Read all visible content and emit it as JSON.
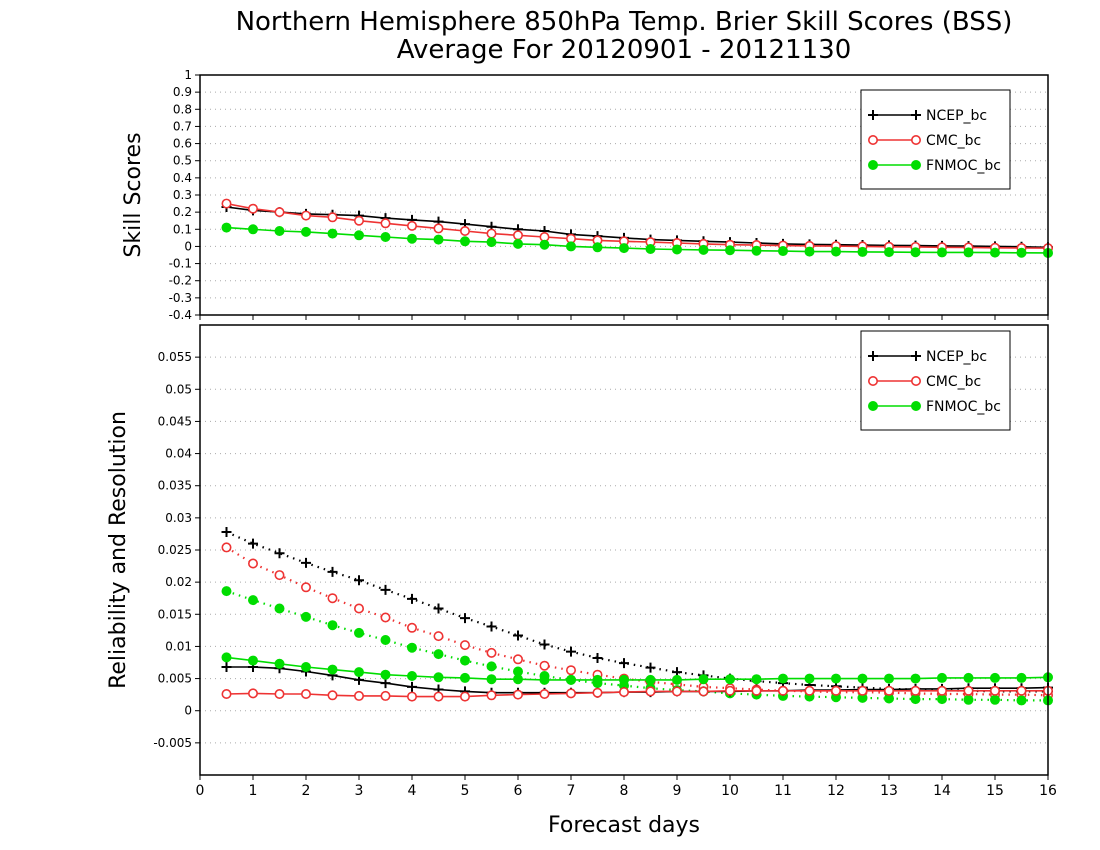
{
  "title_line1": "Northern Hemisphere 850hPa Temp. Brier Skill Scores (BSS)",
  "title_line2": "Average For 20120901 - 20121130",
  "xlabel": "Forecast days",
  "chart_data": [
    {
      "type": "line",
      "ylabel": "Skill Scores",
      "xlim": [
        0,
        16
      ],
      "ylim": [
        -0.4,
        1
      ],
      "grid": true,
      "legend_position": "top-right",
      "x_ticks": [
        "0",
        "1",
        "2",
        "3",
        "4",
        "5",
        "6",
        "7",
        "8",
        "9",
        "10",
        "11",
        "12",
        "13",
        "14",
        "15",
        "16"
      ],
      "y_ticks": [
        "-0.4",
        "-0.3",
        "-0.2",
        "-0.1",
        "0",
        "0.1",
        "0.2",
        "0.3",
        "0.4",
        "0.5",
        "0.6",
        "0.7",
        "0.8",
        "0.9",
        "1"
      ],
      "x": [
        0.5,
        1,
        1.5,
        2,
        2.5,
        3,
        3.5,
        4,
        4.5,
        5,
        5.5,
        6,
        6.5,
        7,
        7.5,
        8,
        8.5,
        9,
        9.5,
        10,
        10.5,
        11,
        11.5,
        12,
        12.5,
        13,
        13.5,
        14,
        14.5,
        15,
        15.5,
        16
      ],
      "series": [
        {
          "name": "NCEP_bc",
          "color": "#000000",
          "marker": "plus",
          "style": "solid",
          "values": [
            0.23,
            0.21,
            0.2,
            0.19,
            0.185,
            0.18,
            0.165,
            0.155,
            0.145,
            0.13,
            0.115,
            0.1,
            0.09,
            0.07,
            0.06,
            0.05,
            0.04,
            0.035,
            0.03,
            0.025,
            0.02,
            0.015,
            0.012,
            0.01,
            0.008,
            0.006,
            0.005,
            0.003,
            0.002,
            0.0,
            -0.002,
            -0.005
          ]
        },
        {
          "name": "CMC_bc",
          "color": "#ee3333",
          "marker": "open-circle",
          "style": "solid",
          "values": [
            0.25,
            0.22,
            0.2,
            0.18,
            0.17,
            0.15,
            0.135,
            0.12,
            0.105,
            0.09,
            0.075,
            0.065,
            0.055,
            0.045,
            0.035,
            0.03,
            0.025,
            0.02,
            0.015,
            0.01,
            0.008,
            0.005,
            0.003,
            0.002,
            0.0,
            -0.002,
            -0.003,
            -0.005,
            -0.006,
            -0.008,
            -0.009,
            -0.01
          ]
        },
        {
          "name": "FNMOC_bc",
          "color": "#00dd00",
          "marker": "filled-circle",
          "style": "solid",
          "values": [
            0.11,
            0.1,
            0.09,
            0.085,
            0.075,
            0.065,
            0.055,
            0.045,
            0.04,
            0.03,
            0.025,
            0.015,
            0.01,
            0.0,
            -0.005,
            -0.01,
            -0.015,
            -0.018,
            -0.02,
            -0.022,
            -0.025,
            -0.027,
            -0.03,
            -0.03,
            -0.032,
            -0.033,
            -0.034,
            -0.035,
            -0.035,
            -0.036,
            -0.037,
            -0.038
          ]
        }
      ]
    },
    {
      "type": "line",
      "ylabel": "Reliability and Resolution",
      "xlim": [
        0,
        16
      ],
      "ylim": [
        -0.01,
        0.06
      ],
      "grid": true,
      "legend_position": "top-right",
      "x_ticks": [
        "0",
        "1",
        "2",
        "3",
        "4",
        "5",
        "6",
        "7",
        "8",
        "9",
        "10",
        "11",
        "12",
        "13",
        "14",
        "15",
        "16"
      ],
      "y_ticks": [
        "-0.005",
        "0",
        "0.005",
        "0.01",
        "0.015",
        "0.02",
        "0.025",
        "0.03",
        "0.035",
        "0.04",
        "0.045",
        "0.05",
        "0.055"
      ],
      "x": [
        0.5,
        1,
        1.5,
        2,
        2.5,
        3,
        3.5,
        4,
        4.5,
        5,
        5.5,
        6,
        6.5,
        7,
        7.5,
        8,
        8.5,
        9,
        9.5,
        10,
        10.5,
        11,
        11.5,
        12,
        12.5,
        13,
        13.5,
        14,
        14.5,
        15,
        15.5,
        16
      ],
      "legend": [
        {
          "name": "NCEP_bc",
          "color": "#000000",
          "marker": "plus"
        },
        {
          "name": "CMC_bc",
          "color": "#ee3333",
          "marker": "open-circle"
        },
        {
          "name": "FNMOC_bc",
          "color": "#00dd00",
          "marker": "filled-circle"
        }
      ],
      "series": [
        {
          "name": "NCEP_bc",
          "color": "#000000",
          "marker": "plus",
          "style": "dotted",
          "values": [
            0.0278,
            0.026,
            0.0245,
            0.023,
            0.0216,
            0.0203,
            0.0188,
            0.0174,
            0.0159,
            0.0144,
            0.0131,
            0.0117,
            0.0103,
            0.0092,
            0.0082,
            0.0074,
            0.0067,
            0.006,
            0.0055,
            0.005,
            0.0046,
            0.0043,
            0.004,
            0.0038,
            0.0036,
            0.0034,
            0.0033,
            0.0032,
            0.0031,
            0.003,
            0.003,
            0.003
          ]
        },
        {
          "name": "CMC_bc",
          "color": "#ee3333",
          "marker": "open-circle",
          "style": "dotted",
          "values": [
            0.0254,
            0.0229,
            0.0211,
            0.0192,
            0.0175,
            0.0159,
            0.0145,
            0.0129,
            0.0116,
            0.0102,
            0.009,
            0.008,
            0.007,
            0.0063,
            0.0056,
            0.005,
            0.0045,
            0.0041,
            0.0037,
            0.0035,
            0.0033,
            0.0031,
            0.003,
            0.0029,
            0.0029,
            0.0028,
            0.0027,
            0.0026,
            0.0026,
            0.0025,
            0.0025,
            0.0024
          ]
        },
        {
          "name": "FNMOC_bc",
          "color": "#00dd00",
          "marker": "filled-circle",
          "style": "dotted",
          "values": [
            0.0186,
            0.0172,
            0.0159,
            0.0146,
            0.0133,
            0.0121,
            0.011,
            0.0098,
            0.0088,
            0.0078,
            0.0069,
            0.0061,
            0.0054,
            0.0048,
            0.0043,
            0.0039,
            0.0035,
            0.0032,
            0.003,
            0.0027,
            0.0025,
            0.0023,
            0.0022,
            0.0021,
            0.002,
            0.0019,
            0.0018,
            0.0018,
            0.0017,
            0.0017,
            0.0016,
            0.0016
          ]
        },
        {
          "name": "NCEP_bc",
          "color": "#000000",
          "marker": "plus",
          "style": "solid",
          "values": [
            0.0068,
            0.0068,
            0.0066,
            0.0061,
            0.0055,
            0.0048,
            0.0043,
            0.0037,
            0.0033,
            0.003,
            0.0028,
            0.0028,
            0.0028,
            0.0028,
            0.0028,
            0.0029,
            0.0029,
            0.003,
            0.003,
            0.003,
            0.0031,
            0.0031,
            0.0032,
            0.0032,
            0.0033,
            0.0033,
            0.0034,
            0.0034,
            0.0035,
            0.0035,
            0.0035,
            0.0036
          ]
        },
        {
          "name": "CMC_bc",
          "color": "#ee3333",
          "marker": "open-circle",
          "style": "solid",
          "values": [
            0.0026,
            0.0027,
            0.0026,
            0.0026,
            0.0024,
            0.0023,
            0.0023,
            0.0022,
            0.0022,
            0.0022,
            0.0024,
            0.0025,
            0.0026,
            0.0027,
            0.0028,
            0.0029,
            0.003,
            0.003,
            0.003,
            0.0031,
            0.0031,
            0.0031,
            0.0031,
            0.0031,
            0.0031,
            0.0031,
            0.0031,
            0.0031,
            0.0031,
            0.0031,
            0.0031,
            0.0031
          ]
        },
        {
          "name": "FNMOC_bc",
          "color": "#00dd00",
          "marker": "filled-circle",
          "style": "solid",
          "values": [
            0.0083,
            0.0078,
            0.0073,
            0.0068,
            0.0064,
            0.006,
            0.0056,
            0.0054,
            0.0052,
            0.0051,
            0.0049,
            0.0049,
            0.0048,
            0.0048,
            0.0048,
            0.0048,
            0.0048,
            0.0048,
            0.0049,
            0.0049,
            0.0049,
            0.005,
            0.005,
            0.005,
            0.005,
            0.005,
            0.005,
            0.0051,
            0.0051,
            0.0051,
            0.0051,
            0.0052
          ]
        }
      ]
    }
  ]
}
